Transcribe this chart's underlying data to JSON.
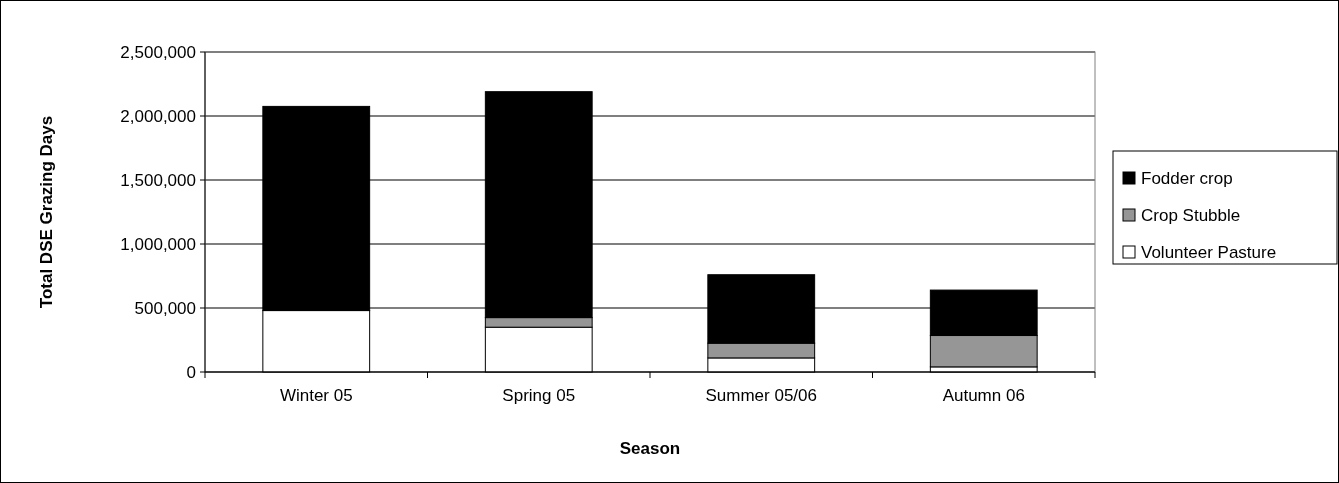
{
  "chart_data": {
    "type": "bar",
    "stacked": true,
    "xlabel": "Season",
    "ylabel": "Total DSE Grazing Days",
    "categories": [
      "Winter 05",
      "Spring 05",
      "Summer 05/06",
      "Autumn 06"
    ],
    "series": [
      {
        "name": "Volunteer Pasture",
        "color": "#ffffff",
        "values": [
          480000,
          350000,
          110000,
          40000
        ]
      },
      {
        "name": "Crop Stubble",
        "color": "#969696",
        "values": [
          0,
          75000,
          115000,
          245000
        ]
      },
      {
        "name": "Fodder crop",
        "color": "#000000",
        "values": [
          1595000,
          1765000,
          535000,
          355000
        ]
      }
    ],
    "ylim": [
      0,
      2500000
    ],
    "yticks": [
      {
        "value": 0,
        "label": "0"
      },
      {
        "value": 500000,
        "label": "500,000"
      },
      {
        "value": 1000000,
        "label": "1,000,000"
      },
      {
        "value": 1500000,
        "label": "1,500,000"
      },
      {
        "value": 2000000,
        "label": "2,000,000"
      },
      {
        "value": 2500000,
        "label": "2,500,000"
      }
    ],
    "grid": "y",
    "legend": "right"
  }
}
